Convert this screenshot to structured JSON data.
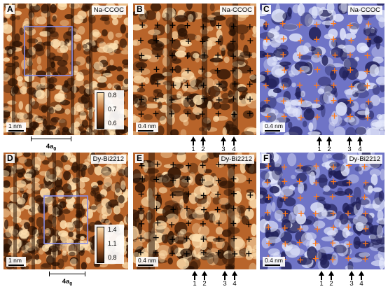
{
  "panels": [
    {
      "letter": "A",
      "tag": "Na-CCOC",
      "scale": "1 nm",
      "palette": "orange",
      "crosses": false
    },
    {
      "letter": "B",
      "tag": "Na-CCOC",
      "scale": "0.4 nm",
      "palette": "orange",
      "crosses": true
    },
    {
      "letter": "C",
      "tag": "Na-CCOC",
      "scale": "0.4 nm",
      "palette": "blue",
      "crosses": true
    },
    {
      "letter": "D",
      "tag": "Dy-Bi2212",
      "scale": "1 nm",
      "palette": "orange",
      "crosses": false
    },
    {
      "letter": "E",
      "tag": "Dy-Bi2212",
      "scale": "0.4 nm",
      "palette": "orange",
      "crosses": true
    },
    {
      "letter": "F",
      "tag": "Dy-Bi2212",
      "scale": "0.4 nm",
      "palette": "blue",
      "crosses": true
    }
  ],
  "colorbars": {
    "top": [
      "0.8",
      "0.7",
      "0.6"
    ],
    "bottom": [
      "1.4",
      "1.1",
      "0.8"
    ]
  },
  "arrow_labels": [
    "1",
    "2",
    "3",
    "4"
  ],
  "lattice_label": {
    "base": "4a",
    "sub": "0"
  },
  "colors": {
    "orange_dark": "#2a1204",
    "orange_mid": "#b8642a",
    "orange_light": "#fde0b0",
    "blue_dark": "#1e1d55",
    "blue_mid": "#6f74c6",
    "blue_light": "#e4e8fb",
    "cross_black": "#000000",
    "cross_orange": "#ff7a1a",
    "inset_box": "#8a8ee8"
  }
}
